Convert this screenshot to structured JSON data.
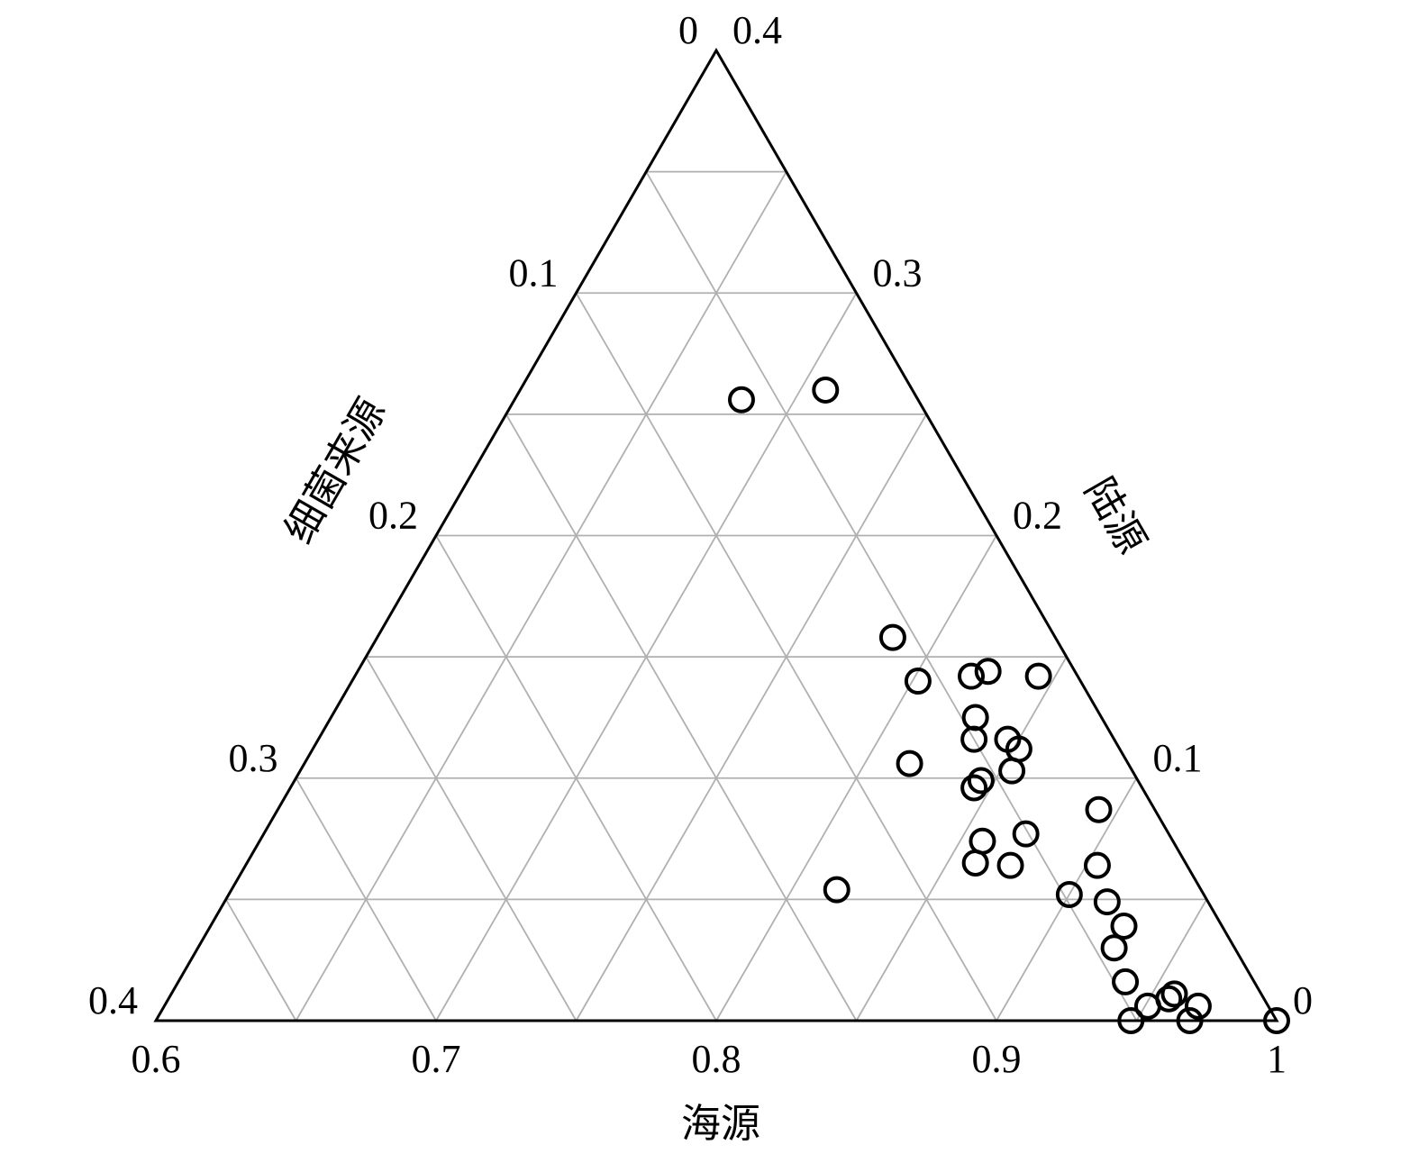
{
  "chart_data": {
    "type": "ternary",
    "a_label": "海源",
    "b_label": "细菌来源",
    "c_label": "陆源",
    "a_lim": [
      0.6,
      1
    ],
    "b_lim": [
      0,
      0.4
    ],
    "c_lim": [
      0,
      0.4
    ],
    "a_ticks": [
      0.6,
      0.7,
      0.8,
      0.9,
      1
    ],
    "b_ticks": [
      0,
      0.1,
      0.2,
      0.3,
      0.4
    ],
    "c_ticks": [
      0,
      0.1,
      0.2,
      0.3,
      0.4
    ],
    "grid": {
      "a": [
        0.65,
        0.7,
        0.75,
        0.8,
        0.85,
        0.9,
        0.95
      ],
      "b": [
        0.05,
        0.1,
        0.15,
        0.2,
        0.25,
        0.3,
        0.35
      ],
      "c": [
        0.05,
        0.1,
        0.15,
        0.2,
        0.25,
        0.3,
        0.35
      ]
    },
    "series": [
      {
        "color": "#000000",
        "a": [
          0.681,
          0.709,
          0.784,
          0.802,
          0.82,
          0.825,
          0.844,
          0.83,
          0.834,
          0.846,
          0.852,
          0.854,
          0.816,
          0.845,
          0.844,
          0.893,
          0.872,
          0.858,
          0.86,
          0.873,
          0.904,
          0.816,
          0.9,
          0.915,
          0.926,
          0.927,
          0.938,
          0.951,
          0.958,
          0.957,
          0.969,
          0.948,
          0.969,
          1
        ],
        "b": [
          0.063,
          0.031,
          0.058,
          0.058,
          0.038,
          0.031,
          0.014,
          0.045,
          0.05,
          0.038,
          0.036,
          0.043,
          0.078,
          0.056,
          0.06,
          0.02,
          0.051,
          0.068,
          0.075,
          0.063,
          0.032,
          0.13,
          0.048,
          0.036,
          0.035,
          0.043,
          0.046,
          0.043,
          0.031,
          0.034,
          0.025,
          0.052,
          0.031,
          0
        ],
        "c": [
          0.256,
          0.26,
          0.158,
          0.14,
          0.142,
          0.144,
          0.142,
          0.125,
          0.116,
          0.116,
          0.112,
          0.103,
          0.106,
          0.099,
          0.096,
          0.087,
          0.077,
          0.074,
          0.065,
          0.064,
          0.064,
          0.054,
          0.052,
          0.049,
          0.039,
          0.03,
          0.016,
          0.006,
          0.011,
          0.009,
          0.006,
          0,
          0,
          0
        ]
      }
    ]
  }
}
